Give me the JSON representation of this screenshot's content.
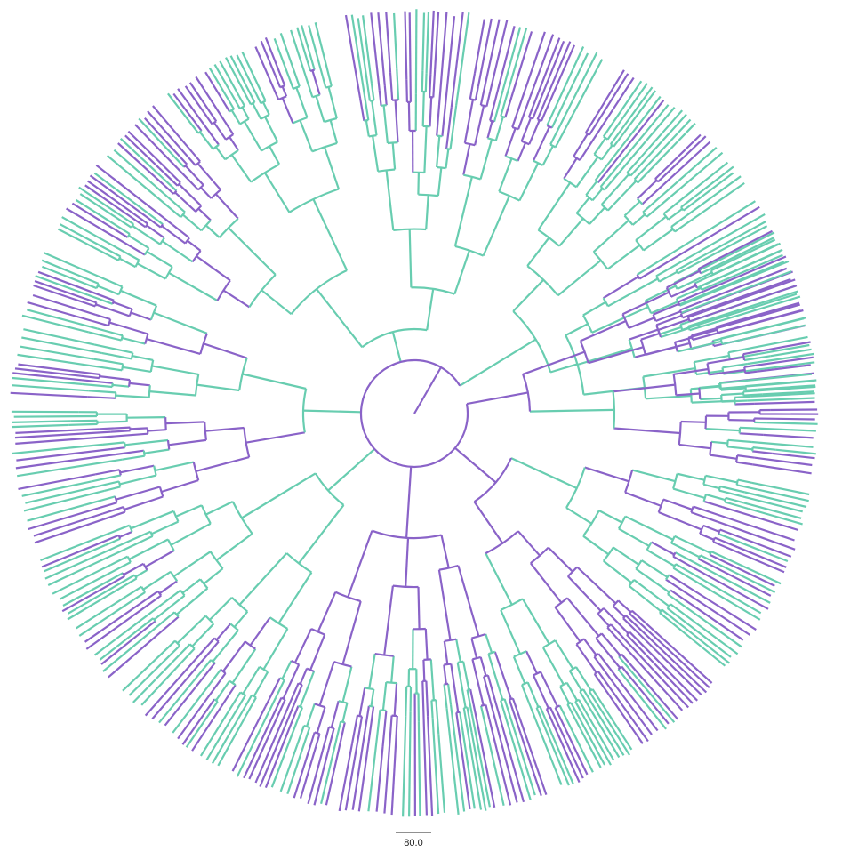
{
  "colors": {
    "clade_a": "#8a63c8",
    "clade_b": "#68cdb0",
    "scale_bar": "#222222"
  },
  "scale_bar": {
    "label": "80.0"
  }
}
